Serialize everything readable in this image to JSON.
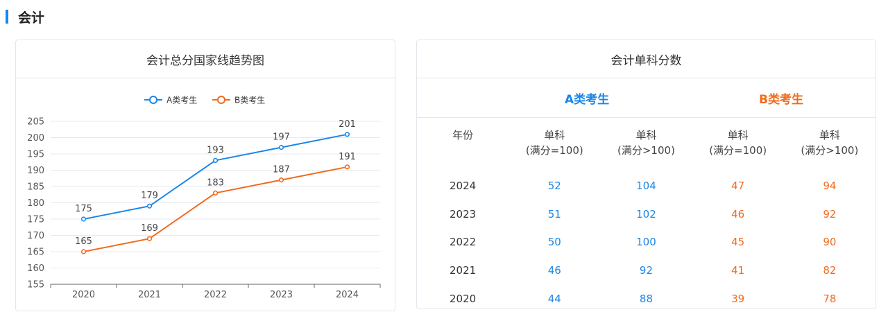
{
  "section": {
    "title": "会计"
  },
  "chart_card": {
    "title": "会计总分国家线趋势图"
  },
  "chart_data": {
    "type": "line",
    "title": "会计总分国家线趋势图",
    "categories": [
      "2020",
      "2021",
      "2022",
      "2023",
      "2024"
    ],
    "series": [
      {
        "name": "A类考生",
        "values": [
          175,
          179,
          193,
          197,
          201
        ],
        "color": "#1a86e8"
      },
      {
        "name": "B类考生",
        "values": [
          165,
          169,
          183,
          187,
          191
        ],
        "color": "#f26a1b"
      }
    ],
    "ylim": [
      155,
      205
    ],
    "yticks": [
      155,
      160,
      165,
      170,
      175,
      180,
      185,
      190,
      195,
      200,
      205
    ],
    "legend": "top-center",
    "grid": true,
    "data_labels": true
  },
  "table_card": {
    "title": "会计单科分数",
    "group_a": "A类考生",
    "group_b": "B类考生",
    "headers": {
      "year": "年份",
      "a_single_100_line1": "单科",
      "a_single_100_line2": "(满分=100)",
      "a_single_gt100_line1": "单科",
      "a_single_gt100_line2": "(满分>100)",
      "b_single_100_line1": "单科",
      "b_single_100_line2": "(满分=100)",
      "b_single_gt100_line1": "单科",
      "b_single_gt100_line2": "(满分>100)"
    },
    "rows": [
      {
        "year": "2024",
        "a100": "52",
        "agt100": "104",
        "b100": "47",
        "bgt100": "94"
      },
      {
        "year": "2023",
        "a100": "51",
        "agt100": "102",
        "b100": "46",
        "bgt100": "92"
      },
      {
        "year": "2022",
        "a100": "50",
        "agt100": "100",
        "b100": "45",
        "bgt100": "90"
      },
      {
        "year": "2021",
        "a100": "46",
        "agt100": "92",
        "b100": "41",
        "bgt100": "82"
      },
      {
        "year": "2020",
        "a100": "44",
        "agt100": "88",
        "b100": "39",
        "bgt100": "78"
      }
    ]
  }
}
